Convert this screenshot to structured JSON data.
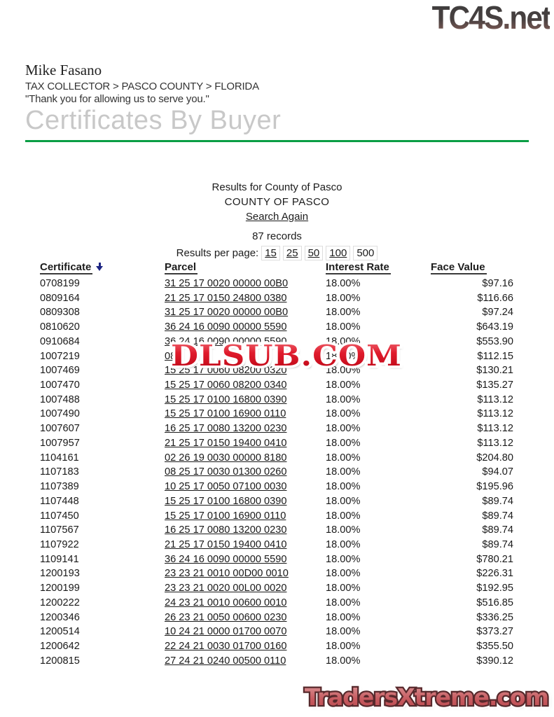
{
  "branding": {
    "top_logo": "TC4S.net",
    "bottom_logo": "TradersXtreme.com",
    "watermark": "DLSUB.COM"
  },
  "colors": {
    "accent_green": "#0a9e45",
    "watermark_red": "#d01021",
    "top_logo_gray": "#3d3d3d",
    "bottom_logo_red": "#c75b60",
    "sort_arrow_navy": "#1d2583",
    "page_title_gray": "#c8c8c8"
  },
  "header": {
    "name": "Mike Fasano",
    "breadcrumb": "TAX COLLECTOR > PASCO COUNTY > FLORIDA",
    "tagline": "\"Thank you for allowing us to serve you.\"",
    "page_title": "Certificates By Buyer"
  },
  "results": {
    "line1": "Results for County of Pasco",
    "line2": "COUNTY OF PASCO",
    "search_again_label": "Search Again",
    "record_count": "87 records",
    "per_page_label": "Results per page:",
    "per_page_options": [
      {
        "label": "15",
        "link": true
      },
      {
        "label": "25",
        "link": true
      },
      {
        "label": "50",
        "link": true
      },
      {
        "label": "100",
        "link": true
      },
      {
        "label": "500",
        "link": false
      }
    ]
  },
  "table": {
    "columns": [
      "Certificate",
      "Parcel",
      "Interest Rate",
      "Face Value"
    ],
    "sorted_by": "Certificate",
    "sort_direction": "descending-arrow",
    "rows": [
      {
        "certificate": "0708199",
        "parcel": "31 25 17 0020 00000 00B0",
        "interest_rate": "18.00%",
        "face_value": "$97.16"
      },
      {
        "certificate": "0809164",
        "parcel": "21 25 17 0150 24800 0380",
        "interest_rate": "18.00%",
        "face_value": "$116.66"
      },
      {
        "certificate": "0809308",
        "parcel": "31 25 17 0020 00000 00B0",
        "interest_rate": "18.00%",
        "face_value": "$97.24"
      },
      {
        "certificate": "0810620",
        "parcel": "36 24 16 0090 00000 5590",
        "interest_rate": "18.00%",
        "face_value": "$643.19"
      },
      {
        "certificate": "0910684",
        "parcel": "36 24 16 0090 00000 5590",
        "interest_rate": "18.00%",
        "face_value": "$553.90"
      },
      {
        "certificate": "1007219",
        "parcel": "08",
        "interest_rate": "18.00%",
        "face_value": "$112.15"
      },
      {
        "certificate": "1007469",
        "parcel": "15 25 17 0060 08200 0320",
        "interest_rate": "18.00%",
        "face_value": "$130.21"
      },
      {
        "certificate": "1007470",
        "parcel": "15 25 17 0060 08200 0340",
        "interest_rate": "18.00%",
        "face_value": "$135.27"
      },
      {
        "certificate": "1007488",
        "parcel": "15 25 17 0100 16800 0390",
        "interest_rate": "18.00%",
        "face_value": "$113.12"
      },
      {
        "certificate": "1007490",
        "parcel": "15 25 17 0100 16900 0110",
        "interest_rate": "18.00%",
        "face_value": "$113.12"
      },
      {
        "certificate": "1007607",
        "parcel": "16 25 17 0080 13200 0230",
        "interest_rate": "18.00%",
        "face_value": "$113.12"
      },
      {
        "certificate": "1007957",
        "parcel": "21 25 17 0150 19400 0410",
        "interest_rate": "18.00%",
        "face_value": "$113.12"
      },
      {
        "certificate": "1104161",
        "parcel": "02 26 19 0030 00000 8180",
        "interest_rate": "18.00%",
        "face_value": "$204.80"
      },
      {
        "certificate": "1107183",
        "parcel": "08 25 17 0030 01300 0260",
        "interest_rate": "18.00%",
        "face_value": "$94.07"
      },
      {
        "certificate": "1107389",
        "parcel": "10 25 17 0050 07100 0030",
        "interest_rate": "18.00%",
        "face_value": "$195.96"
      },
      {
        "certificate": "1107448",
        "parcel": "15 25 17 0100 16800 0390",
        "interest_rate": "18.00%",
        "face_value": "$89.74"
      },
      {
        "certificate": "1107450",
        "parcel": "15 25 17 0100 16900 0110",
        "interest_rate": "18.00%",
        "face_value": "$89.74"
      },
      {
        "certificate": "1107567",
        "parcel": "16 25 17 0080 13200 0230",
        "interest_rate": "18.00%",
        "face_value": "$89.74"
      },
      {
        "certificate": "1107922",
        "parcel": "21 25 17 0150 19400 0410",
        "interest_rate": "18.00%",
        "face_value": "$89.74"
      },
      {
        "certificate": "1109141",
        "parcel": "36 24 16 0090 00000 5590",
        "interest_rate": "18.00%",
        "face_value": "$780.21"
      },
      {
        "certificate": "1200193",
        "parcel": "23 23 21 0010 00D00 0010",
        "interest_rate": "18.00%",
        "face_value": "$226.31"
      },
      {
        "certificate": "1200199",
        "parcel": "23 23 21 0020 00L00 0020",
        "interest_rate": "18.00%",
        "face_value": "$192.95"
      },
      {
        "certificate": "1200222",
        "parcel": "24 23 21 0010 00600 0010",
        "interest_rate": "18.00%",
        "face_value": "$516.85"
      },
      {
        "certificate": "1200346",
        "parcel": "26 23 21 0050 00600 0230",
        "interest_rate": "18.00%",
        "face_value": "$336.25"
      },
      {
        "certificate": "1200514",
        "parcel": "10 24 21 0000 01700 0070",
        "interest_rate": "18.00%",
        "face_value": "$373.27"
      },
      {
        "certificate": "1200642",
        "parcel": "22 24 21 0030 01700 0160",
        "interest_rate": "18.00%",
        "face_value": "$355.50"
      },
      {
        "certificate": "1200815",
        "parcel": "27 24 21 0240 00500 0110",
        "interest_rate": "18.00%",
        "face_value": "$390.12"
      }
    ]
  }
}
